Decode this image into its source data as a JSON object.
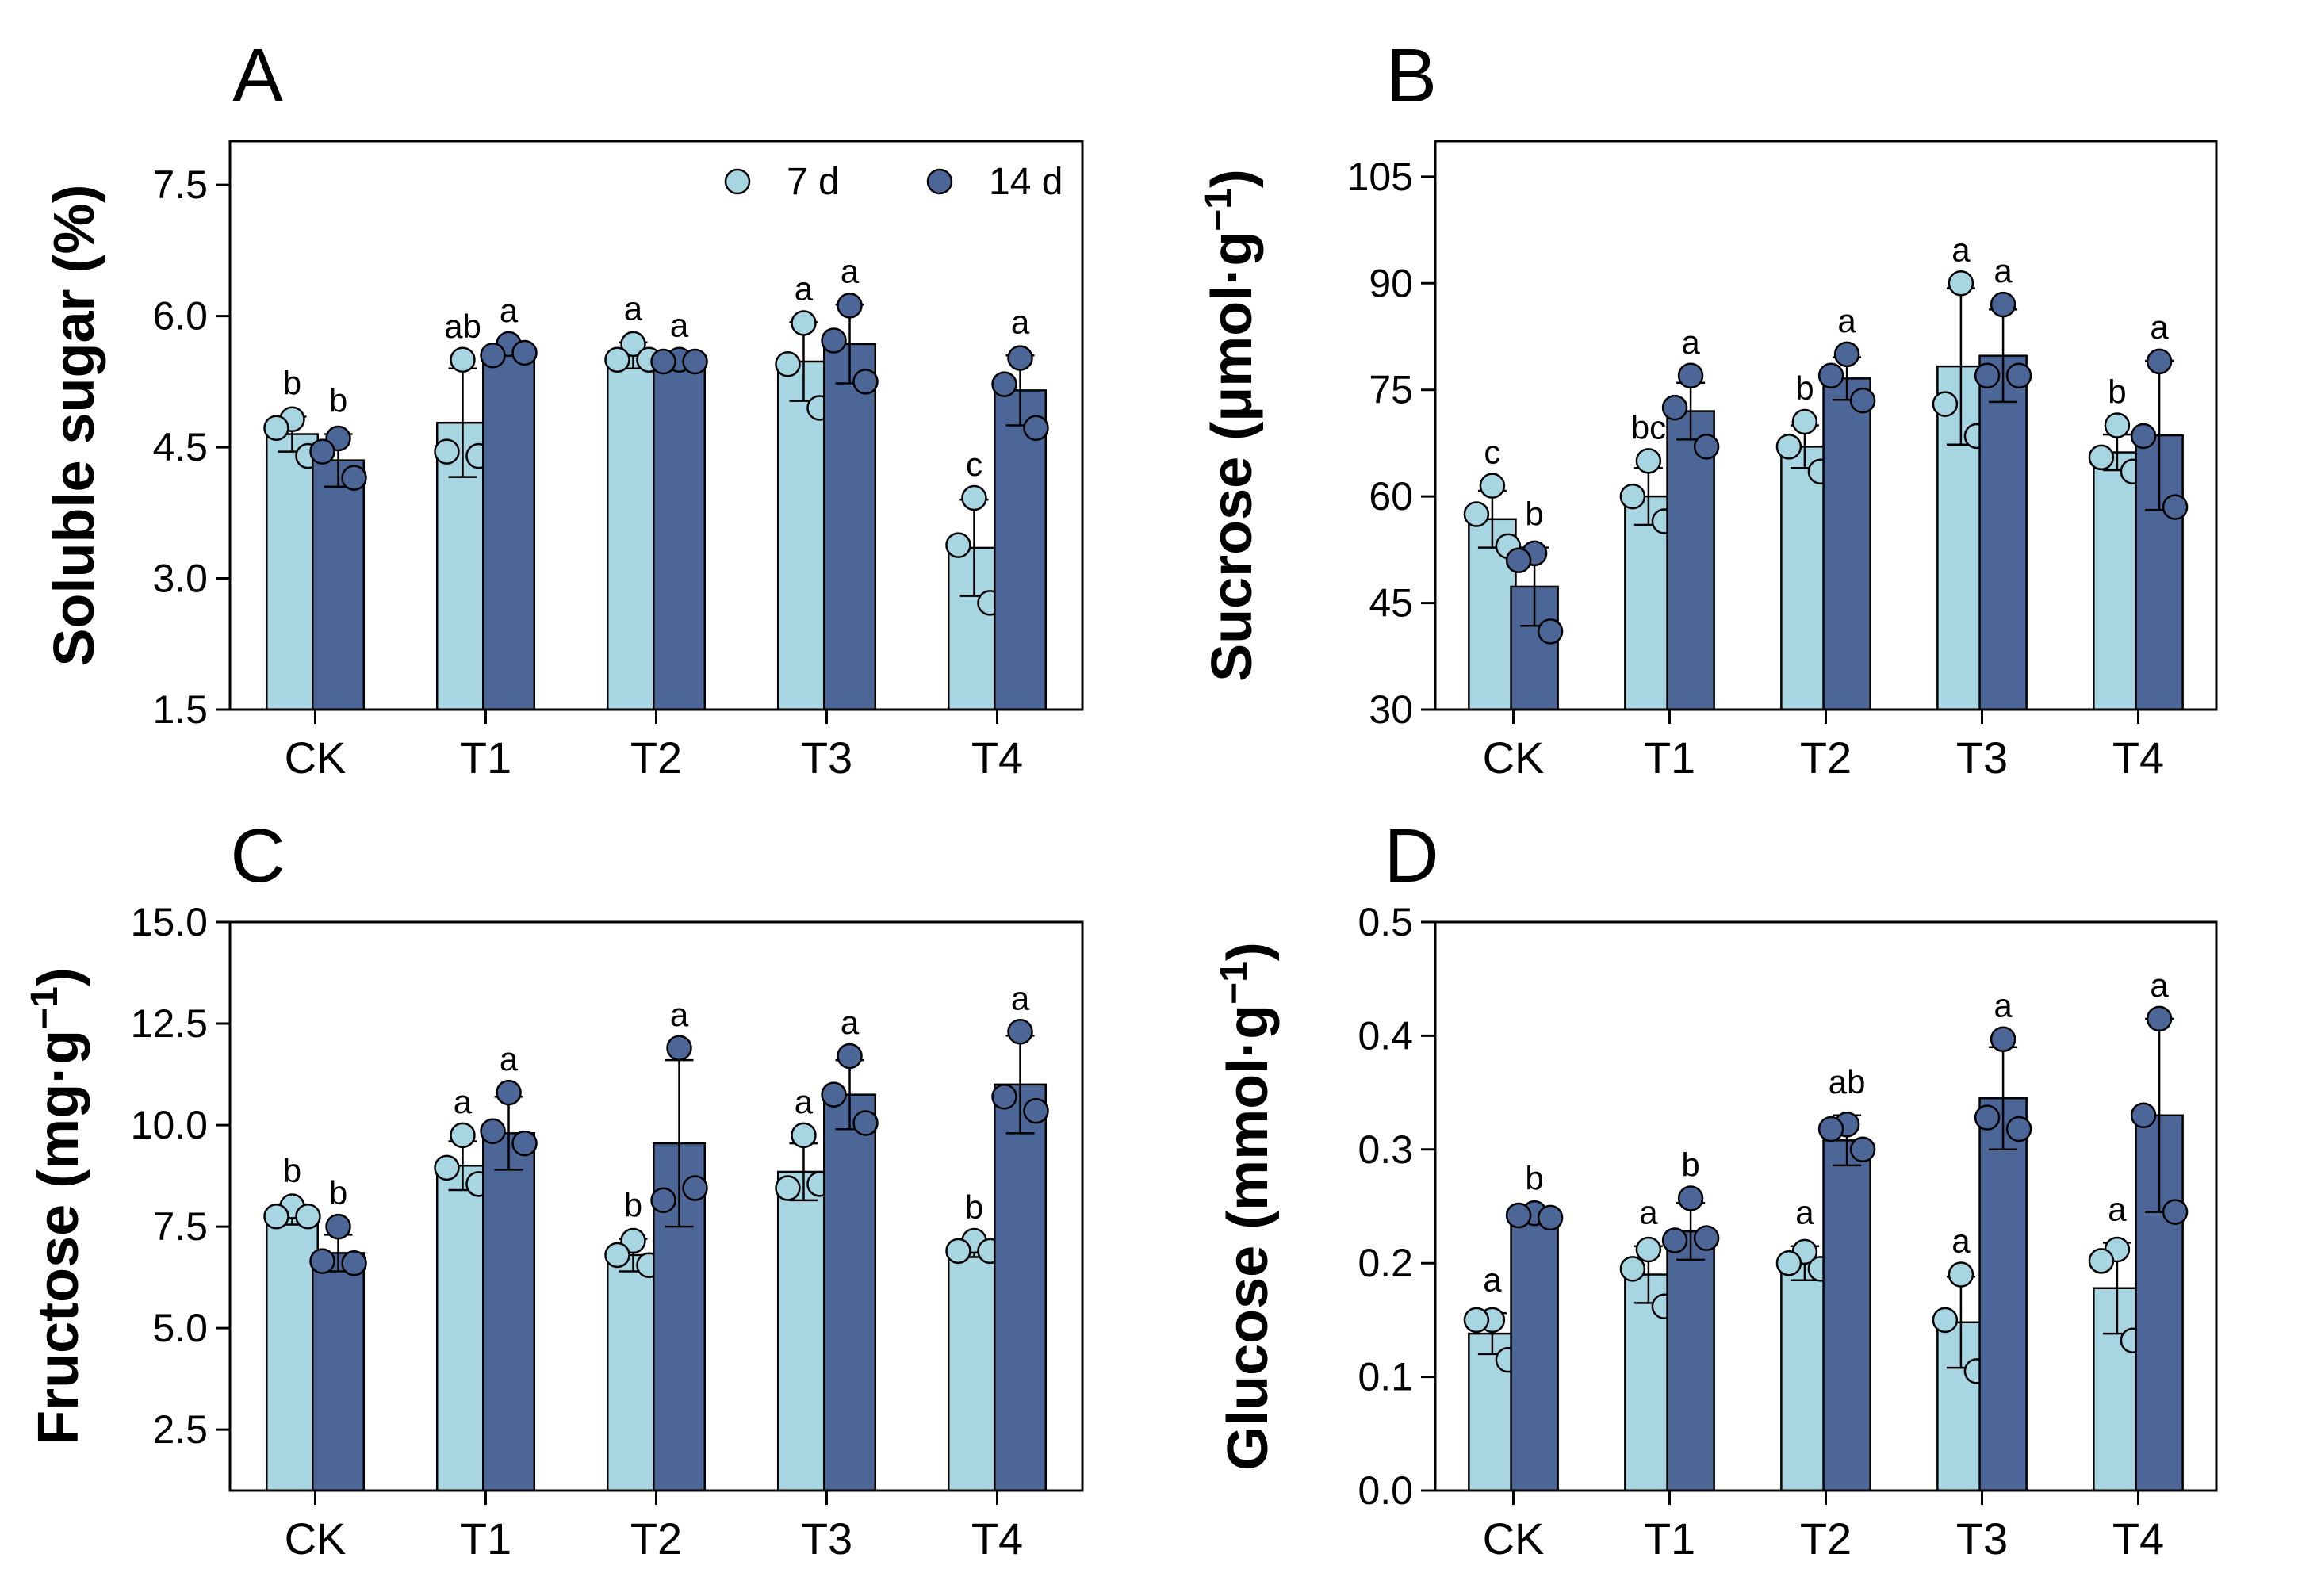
{
  "legend": [
    {
      "label": "7 d",
      "color": "#a8d5e2"
    },
    {
      "label": "14 d",
      "color": "#4c6698"
    }
  ],
  "chart_data": [
    {
      "panel": "A",
      "type": "bar",
      "ylabel": "Soluble sugar (%)",
      "ylim": [
        1.5,
        8.0
      ],
      "yticks": [
        "1.5",
        "3.0",
        "4.5",
        "6.0",
        "7.5"
      ],
      "categories": [
        "CK",
        "T1",
        "T2",
        "T3",
        "T4"
      ],
      "legend_location": "top-right",
      "series": [
        {
          "name": "7 d",
          "color": "#a8d5e2",
          "values": [
            4.65,
            4.78,
            5.55,
            5.48,
            3.35
          ],
          "sd": [
            0.2,
            0.62,
            0.15,
            0.45,
            0.55
          ],
          "points": [
            [
              4.82,
              4.72,
              4.4
            ],
            [
              5.5,
              4.45,
              4.4
            ],
            [
              5.68,
              5.5,
              5.5
            ],
            [
              5.92,
              5.45,
              4.95
            ],
            [
              3.92,
              3.38,
              2.72
            ]
          ],
          "letters": [
            "b",
            "ab",
            "a",
            "a",
            "c"
          ]
        },
        {
          "name": "14 d",
          "color": "#4c6698",
          "values": [
            4.35,
            5.6,
            5.48,
            5.68,
            5.15
          ],
          "sd": [
            0.3,
            0.05,
            0.03,
            0.45,
            0.4
          ],
          "points": [
            [
              4.6,
              4.45,
              4.15
            ],
            [
              5.68,
              5.55,
              5.58
            ],
            [
              5.5,
              5.48,
              5.48
            ],
            [
              6.12,
              5.72,
              5.25
            ],
            [
              5.52,
              5.22,
              4.72
            ]
          ],
          "letters": [
            "b",
            "a",
            "a",
            "a",
            "a"
          ]
        }
      ]
    },
    {
      "panel": "B",
      "type": "bar",
      "ylabel": "Sucrose (μmol·g",
      "ylabel_sup": "−1",
      "ylabel_close": ")",
      "ylim": [
        30,
        110
      ],
      "yticks": [
        "30",
        "45",
        "60",
        "75",
        "90",
        "105"
      ],
      "categories": [
        "CK",
        "T1",
        "T2",
        "T3",
        "T4"
      ],
      "series": [
        {
          "name": "7 d",
          "color": "#a8d5e2",
          "values": [
            56.8,
            60.0,
            67.0,
            78.3,
            66.2
          ],
          "sd": [
            4.0,
            4.0,
            3.0,
            11.0,
            2.5
          ],
          "points": [
            [
              61.5,
              57.5,
              53.0
            ],
            [
              65.0,
              60.0,
              56.5
            ],
            [
              70.5,
              67.0,
              63.5
            ],
            [
              90.0,
              73.0,
              68.5
            ],
            [
              70.0,
              65.5,
              63.5
            ]
          ],
          "letters": [
            "c",
            "bc",
            "b",
            "a",
            "b"
          ]
        },
        {
          "name": "14 d",
          "color": "#4c6698",
          "values": [
            47.3,
            72.0,
            76.6,
            79.8,
            68.6
          ],
          "sd": [
            5.5,
            4.0,
            3.0,
            6.5,
            10.5
          ],
          "points": [
            [
              52.0,
              51.0,
              41.0
            ],
            [
              77.0,
              72.5,
              67.0
            ],
            [
              80.0,
              77.0,
              73.5
            ],
            [
              87.0,
              77.0,
              77.0
            ],
            [
              79.0,
              68.5,
              58.5
            ]
          ],
          "letters": [
            "b",
            "a",
            "a",
            "a",
            "a"
          ]
        }
      ]
    },
    {
      "panel": "C",
      "type": "bar",
      "ylabel": "Fructose (mg·g",
      "ylabel_sup": "−1",
      "ylabel_close": ")",
      "ylim": [
        1.0,
        15.0
      ],
      "yticks": [
        "2.5",
        "5.0",
        "7.5",
        "10.0",
        "12.5",
        "15.0"
      ],
      "categories": [
        "CK",
        "T1",
        "T2",
        "T3",
        "T4"
      ],
      "series": [
        {
          "name": "7 d",
          "color": "#a8d5e2",
          "values": [
            7.8,
            9.0,
            6.8,
            8.85,
            6.95
          ],
          "sd": [
            0.25,
            0.6,
            0.4,
            0.7,
            0.2
          ],
          "points": [
            [
              8.0,
              7.75,
              7.75
            ],
            [
              9.75,
              8.95,
              8.55
            ],
            [
              7.15,
              6.8,
              6.55
            ],
            [
              9.75,
              8.45,
              8.55
            ],
            [
              7.15,
              6.9,
              6.9
            ]
          ],
          "letters": [
            "b",
            "a",
            "b",
            "a",
            "b"
          ]
        },
        {
          "name": "14 d",
          "color": "#4c6698",
          "values": [
            6.85,
            9.8,
            9.55,
            10.75,
            11.0
          ],
          "sd": [
            0.45,
            0.9,
            2.05,
            0.85,
            1.2
          ],
          "points": [
            [
              7.5,
              6.65,
              6.6
            ],
            [
              10.8,
              9.85,
              9.55
            ],
            [
              11.9,
              8.15,
              8.45
            ],
            [
              11.7,
              10.75,
              10.05
            ],
            [
              12.3,
              10.7,
              10.35
            ]
          ],
          "letters": [
            "b",
            "a",
            "a",
            "a",
            "a"
          ]
        }
      ]
    },
    {
      "panel": "D",
      "type": "bar",
      "ylabel": "Glucose (mmol·g",
      "ylabel_sup": "−1",
      "ylabel_close": ")",
      "ylim": [
        0.0,
        0.5
      ],
      "yticks": [
        "0.0",
        "0.1",
        "0.2",
        "0.3",
        "0.4",
        "0.5"
      ],
      "categories": [
        "CK",
        "T1",
        "T2",
        "T3",
        "T4"
      ],
      "series": [
        {
          "name": "7 d",
          "color": "#a8d5e2",
          "values": [
            0.138,
            0.19,
            0.2,
            0.148,
            0.178
          ],
          "sd": [
            0.018,
            0.025,
            0.015,
            0.04,
            0.04
          ],
          "points": [
            [
              0.15,
              0.15,
              0.115
            ],
            [
              0.212,
              0.195,
              0.162
            ],
            [
              0.21,
              0.2,
              0.195
            ],
            [
              0.19,
              0.15,
              0.105
            ],
            [
              0.212,
              0.202,
              0.132
            ]
          ],
          "letters": [
            "a",
            "a",
            "a",
            "a",
            "a"
          ]
        },
        {
          "name": "14 d",
          "color": "#4c6698",
          "values": [
            0.242,
            0.228,
            0.308,
            0.345,
            0.33
          ],
          "sd": [
            0.003,
            0.025,
            0.022,
            0.045,
            0.085
          ],
          "points": [
            [
              0.244,
              0.242,
              0.24
            ],
            [
              0.257,
              0.22,
              0.222
            ],
            [
              0.322,
              0.318,
              0.3
            ],
            [
              0.397,
              0.328,
              0.318
            ],
            [
              0.415,
              0.33,
              0.245
            ]
          ],
          "letters": [
            "b",
            "b",
            "ab",
            "a",
            "a"
          ]
        }
      ]
    }
  ]
}
